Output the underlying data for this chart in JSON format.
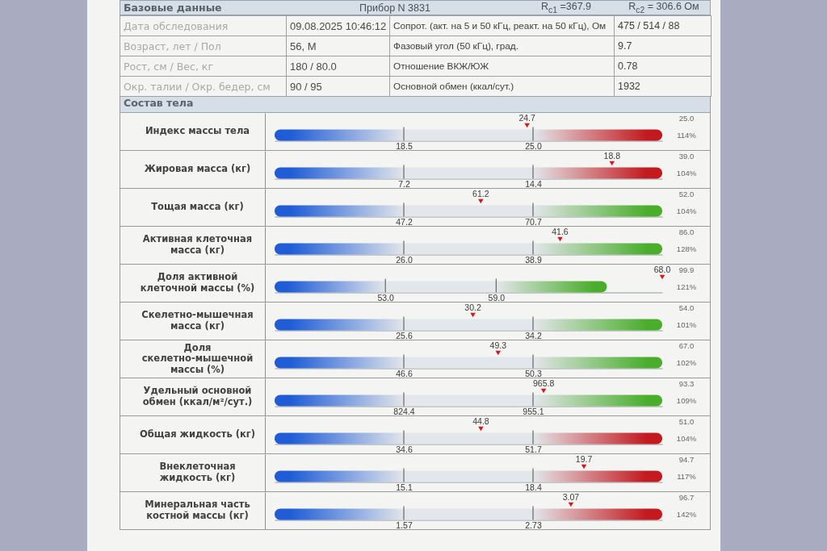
{
  "chart_data": [
    {
      "type": "other",
      "title": "Базовые данные",
      "annotations": [
        "Прибор N 3831",
        "R$_{c1}$ =367.9",
        "R$_{c2}$ = 306.6 Ом",
        "Дата обследования",
        "09.08.2025 10:46:12",
        "Сопрот. (акт. на 5 и 50 кГц, реакт. на 50 кГц), Ом",
        "475 / 514 / 88",
        "Возраст, лет / Пол",
        "56, М",
        "Фазовый угол (50 кГц), град.",
        "9.7",
        "Рост, см / Вес, кг",
        "180 / 80.0",
        "Отношение ВКЖ/ЮЖ",
        "0.78",
        "Окр. талии / Окр. бедер, см",
        "90 / 95",
        "Основной обмен (ккал/сут.)",
        "1932"
      ]
    },
    {
      "type": "scatter",
      "title": "Состав тела",
      "orientation": "horizontal",
      "categories": [
        "Индекс массы тела"
      ],
      "values": [
        24.7
      ],
      "data_labels": true,
      "color": "#d31a1a",
      "marker": "triangle",
      "xlim": [
        12.0,
        31.5
      ],
      "xticks": [
        18.5,
        {
          "value": 25.0,
          "label": "25.0"
        }
      ],
      "bands": [
        {
          "axis": "x",
          "from": 12.0,
          "to": 18.5,
          "color": "#1f5cd6"
        },
        {
          "axis": "x",
          "from": 18.5,
          "to": 25.0,
          "color": "#e3e6ea"
        },
        {
          "axis": "x",
          "from": 25.0,
          "to": 31.5,
          "color": "#c21a1f"
        }
      ],
      "ref_lines": [
        {
          "axis": "x",
          "value": 18.5
        },
        {
          "axis": "x",
          "value": 25.0
        }
      ],
      "annotations": [
        "25.0",
        "114%"
      ]
    },
    {
      "type": "scatter",
      "orientation": "horizontal",
      "categories": [
        "Жировая масса (кг)"
      ],
      "values": [
        18.8
      ],
      "data_labels": true,
      "color": "#d31a1a",
      "marker": "triangle",
      "xlim": [
        0.0,
        21.6
      ],
      "xticks": [
        7.2,
        14.4
      ],
      "bands": [
        {
          "axis": "x",
          "from": 0.0,
          "to": 7.2,
          "color": "#1f5cd6"
        },
        {
          "axis": "x",
          "from": 7.2,
          "to": 14.4,
          "color": "#e3e6ea"
        },
        {
          "axis": "x",
          "from": 14.4,
          "to": 21.6,
          "color": "#c21a1f"
        }
      ],
      "ref_lines": [
        {
          "axis": "x",
          "value": 7.2
        },
        {
          "axis": "x",
          "value": 14.4
        }
      ],
      "annotations": [
        "39.0",
        "104%"
      ]
    },
    {
      "type": "scatter",
      "orientation": "horizontal",
      "categories": [
        "Тощая масса (кг)"
      ],
      "values": [
        61.2
      ],
      "data_labels": true,
      "color": "#d31a1a",
      "marker": "triangle",
      "xlim": [
        23.7,
        94.2
      ],
      "xticks": [
        47.2,
        70.7
      ],
      "bands": [
        {
          "axis": "x",
          "from": 23.7,
          "to": 47.2,
          "color": "#1f5cd6"
        },
        {
          "axis": "x",
          "from": 47.2,
          "to": 70.7,
          "color": "#e3e6ea"
        },
        {
          "axis": "x",
          "from": 70.7,
          "to": 94.2,
          "color": "#4aae2c"
        }
      ],
      "ref_lines": [
        {
          "axis": "x",
          "value": 47.2
        },
        {
          "axis": "x",
          "value": 70.7
        }
      ],
      "annotations": [
        "52.0",
        "104%"
      ]
    },
    {
      "type": "scatter",
      "orientation": "horizontal",
      "categories": [
        "Активная клеточная масса (кг)"
      ],
      "values": [
        41.6
      ],
      "data_labels": true,
      "color": "#d31a1a",
      "marker": "triangle",
      "xlim": [
        13.1,
        51.8
      ],
      "xticks": [
        {
          "value": 26.0,
          "label": "26.0"
        },
        38.9
      ],
      "bands": [
        {
          "axis": "x",
          "from": 13.1,
          "to": 26.0,
          "color": "#1f5cd6"
        },
        {
          "axis": "x",
          "from": 26.0,
          "to": 38.9,
          "color": "#e3e6ea"
        },
        {
          "axis": "x",
          "from": 38.9,
          "to": 51.8,
          "color": "#4aae2c"
        }
      ],
      "ref_lines": [
        {
          "axis": "x",
          "value": 26.0
        },
        {
          "axis": "x",
          "value": 38.9
        }
      ],
      "annotations": [
        "86.0",
        "128%"
      ]
    },
    {
      "type": "scatter",
      "orientation": "horizontal",
      "categories": [
        "Доля активной клеточной массы (%)"
      ],
      "values": [
        68.0
      ],
      "value_labels": [
        "68.0"
      ],
      "color": "#d31a1a",
      "marker": "triangle",
      "xlim": [
        47.0,
        68.0
      ],
      "xticks": [
        {
          "value": 53.0,
          "label": "53.0"
        },
        {
          "value": 59.0,
          "label": "59.0"
        }
      ],
      "bands": [
        {
          "axis": "x",
          "from": 47.0,
          "to": 53.0,
          "color": "#1f5cd6"
        },
        {
          "axis": "x",
          "from": 53.0,
          "to": 59.0,
          "color": "#e3e6ea"
        },
        {
          "axis": "x",
          "from": 59.0,
          "to": 65.0,
          "color": "#4aae2c"
        }
      ],
      "ref_lines": [
        {
          "axis": "x",
          "value": 53.0
        },
        {
          "axis": "x",
          "value": 59.0
        }
      ],
      "annotations": [
        "99.9",
        "121%"
      ]
    },
    {
      "type": "scatter",
      "orientation": "horizontal",
      "categories": [
        "Скелетно-мышечная масса (кг)"
      ],
      "values": [
        30.2
      ],
      "data_labels": true,
      "color": "#d31a1a",
      "marker": "triangle",
      "xlim": [
        17.0,
        42.8
      ],
      "xticks": [
        25.6,
        34.2
      ],
      "bands": [
        {
          "axis": "x",
          "from": 17.0,
          "to": 25.6,
          "color": "#1f5cd6"
        },
        {
          "axis": "x",
          "from": 25.6,
          "to": 34.2,
          "color": "#e3e6ea"
        },
        {
          "axis": "x",
          "from": 34.2,
          "to": 42.8,
          "color": "#4aae2c"
        }
      ],
      "ref_lines": [
        {
          "axis": "x",
          "value": 25.6
        },
        {
          "axis": "x",
          "value": 34.2
        }
      ],
      "annotations": [
        "54.0",
        "101%"
      ]
    },
    {
      "type": "scatter",
      "orientation": "horizontal",
      "categories": [
        "Доля скелетно-мышечной массы (%)"
      ],
      "values": [
        49.3
      ],
      "data_labels": true,
      "color": "#d31a1a",
      "marker": "triangle",
      "xlim": [
        42.9,
        54.0
      ],
      "xticks": [
        46.6,
        50.3
      ],
      "bands": [
        {
          "axis": "x",
          "from": 42.9,
          "to": 46.6,
          "color": "#1f5cd6"
        },
        {
          "axis": "x",
          "from": 46.6,
          "to": 50.3,
          "color": "#e3e6ea"
        },
        {
          "axis": "x",
          "from": 50.3,
          "to": 54.0,
          "color": "#4aae2c"
        }
      ],
      "ref_lines": [
        {
          "axis": "x",
          "value": 46.6
        },
        {
          "axis": "x",
          "value": 50.3
        }
      ],
      "annotations": [
        "67.0",
        "102%"
      ]
    },
    {
      "type": "scatter",
      "orientation": "horizontal",
      "categories": [
        "Удельный основной обмен (ккал/м²/сут.)"
      ],
      "values": [
        965.8
      ],
      "data_labels": true,
      "color": "#d31a1a",
      "marker": "triangle",
      "xlim": [
        693.7,
        1085.8
      ],
      "xticks": [
        824.4,
        955.1
      ],
      "bands": [
        {
          "axis": "x",
          "from": 693.7,
          "to": 824.4,
          "color": "#1f5cd6"
        },
        {
          "axis": "x",
          "from": 824.4,
          "to": 955.1,
          "color": "#e3e6ea"
        },
        {
          "axis": "x",
          "from": 955.1,
          "to": 1085.8,
          "color": "#4aae2c"
        }
      ],
      "ref_lines": [
        {
          "axis": "x",
          "value": 824.4
        },
        {
          "axis": "x",
          "value": 955.1
        }
      ],
      "annotations": [
        "93.3",
        "109%"
      ]
    },
    {
      "type": "scatter",
      "orientation": "horizontal",
      "categories": [
        "Общая жидкость (кг)"
      ],
      "values": [
        44.8
      ],
      "data_labels": true,
      "color": "#d31a1a",
      "marker": "triangle",
      "xlim": [
        17.5,
        68.8
      ],
      "xticks": [
        34.6,
        51.7
      ],
      "bands": [
        {
          "axis": "x",
          "from": 17.5,
          "to": 34.6,
          "color": "#1f5cd6"
        },
        {
          "axis": "x",
          "from": 34.6,
          "to": 51.7,
          "color": "#e3e6ea"
        },
        {
          "axis": "x",
          "from": 51.7,
          "to": 68.8,
          "color": "#c21a1f"
        }
      ],
      "ref_lines": [
        {
          "axis": "x",
          "value": 34.6
        },
        {
          "axis": "x",
          "value": 51.7
        }
      ],
      "annotations": [
        "51.0",
        "104%"
      ]
    },
    {
      "type": "scatter",
      "orientation": "horizontal",
      "categories": [
        "Внеклеточная жидкость (кг)"
      ],
      "values": [
        19.7
      ],
      "data_labels": true,
      "color": "#d31a1a",
      "marker": "triangle",
      "xlim": [
        11.8,
        21.7
      ],
      "xticks": [
        15.1,
        18.4
      ],
      "bands": [
        {
          "axis": "x",
          "from": 11.8,
          "to": 15.1,
          "color": "#1f5cd6"
        },
        {
          "axis": "x",
          "from": 15.1,
          "to": 18.4,
          "color": "#e3e6ea"
        },
        {
          "axis": "x",
          "from": 18.4,
          "to": 21.7,
          "color": "#c21a1f"
        }
      ],
      "ref_lines": [
        {
          "axis": "x",
          "value": 15.1
        },
        {
          "axis": "x",
          "value": 18.4
        }
      ],
      "annotations": [
        "94.7",
        "117%"
      ]
    },
    {
      "type": "scatter",
      "orientation": "horizontal",
      "categories": [
        "Минеральная часть костной массы (кг)"
      ],
      "values": [
        3.07
      ],
      "data_labels": true,
      "color": "#d31a1a",
      "marker": "triangle",
      "xlim": [
        0.41,
        3.89
      ],
      "xticks": [
        1.57,
        2.73
      ],
      "bands": [
        {
          "axis": "x",
          "from": 0.41,
          "to": 1.57,
          "color": "#1f5cd6"
        },
        {
          "axis": "x",
          "from": 1.57,
          "to": 2.73,
          "color": "#e3e6ea"
        },
        {
          "axis": "x",
          "from": 2.73,
          "to": 3.89,
          "color": "#c21a1f"
        }
      ],
      "ref_lines": [
        {
          "axis": "x",
          "value": 1.57
        },
        {
          "axis": "x",
          "value": 2.73
        }
      ],
      "annotations": [
        "96.7",
        "142%"
      ]
    }
  ]
}
